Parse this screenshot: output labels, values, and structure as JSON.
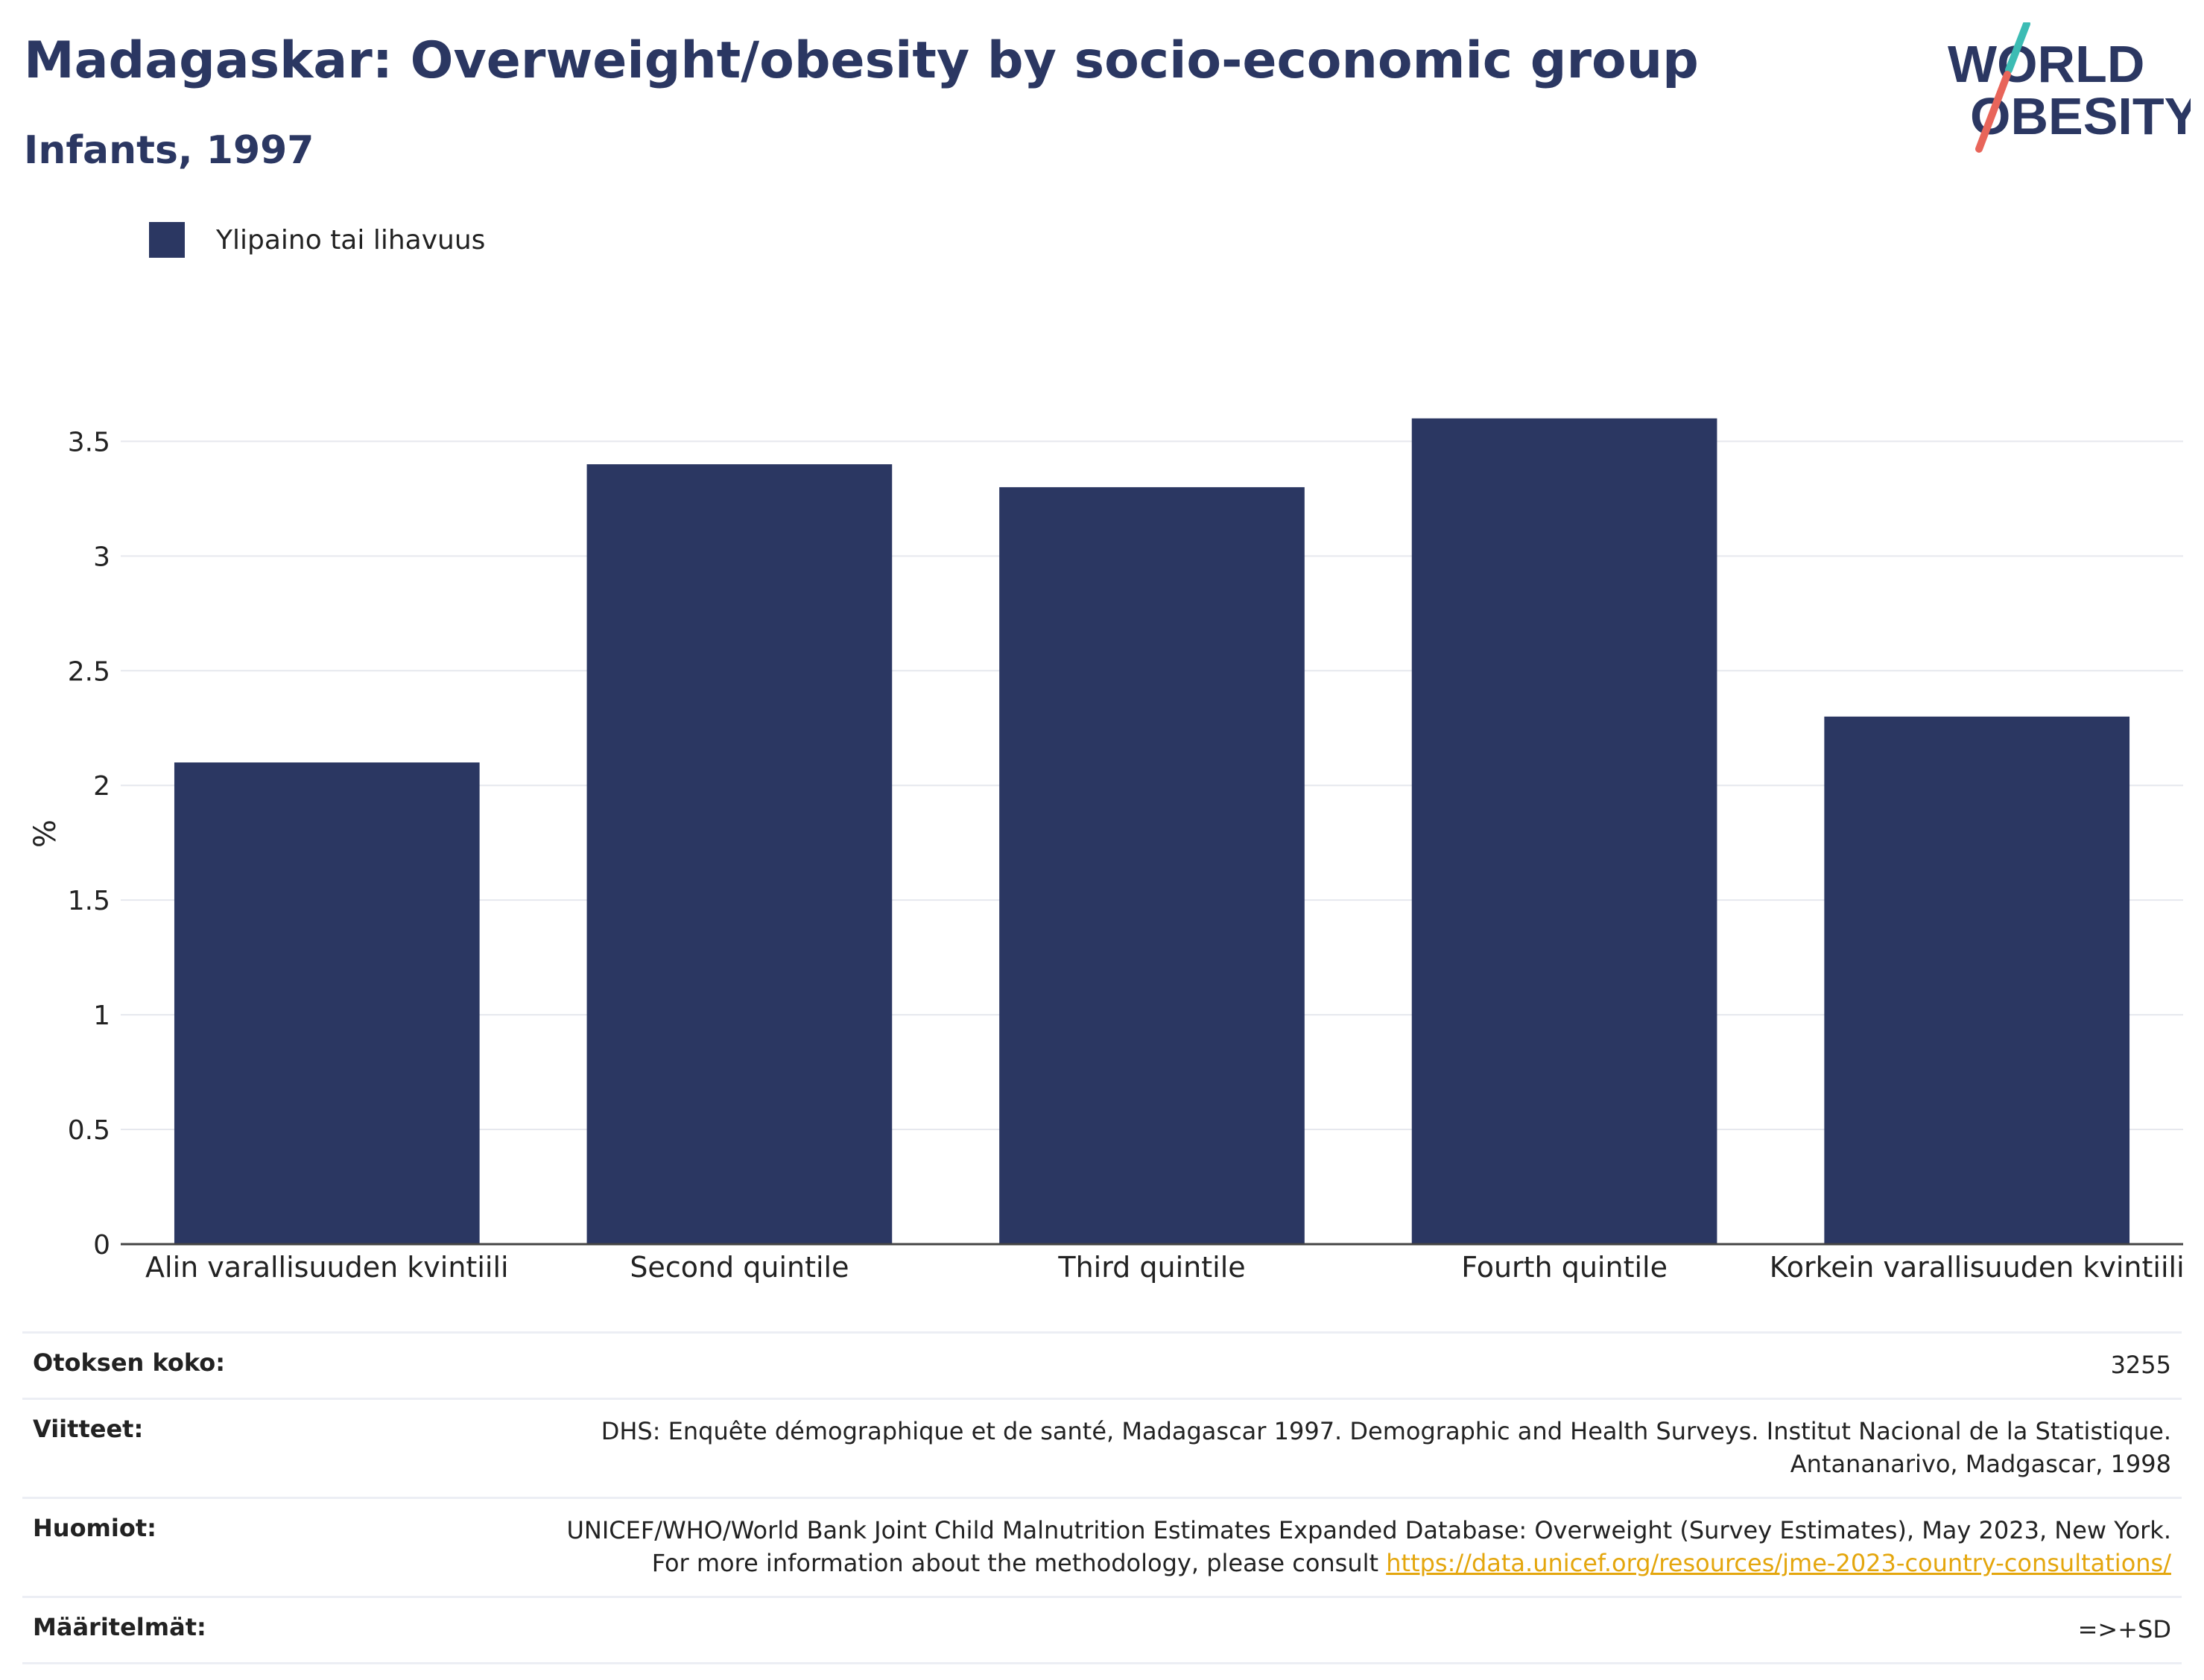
{
  "header": {
    "title": "Madagaskar: Overweight/obesity by socio-economic group",
    "subtitle": "Infants, 1997"
  },
  "logo": {
    "line1": "WORLD",
    "line2": "OBESITY",
    "colors": {
      "text": "#2b3762",
      "slash_top": "#3cbcb4",
      "slash_bottom": "#e8655a"
    }
  },
  "legend": {
    "label": "Ylipaino tai lihavuus"
  },
  "colors": {
    "bar": "#2b3762",
    "grid": "#e6e8ee",
    "axis": "#444444"
  },
  "chart_data": {
    "type": "bar",
    "categories": [
      "Alin varallisuuden kvintiili",
      "Second quintile",
      "Third quintile",
      "Fourth quintile",
      "Korkein varallisuuden kvintiili"
    ],
    "series": [
      {
        "name": "Ylipaino tai lihavuus",
        "values": [
          2.1,
          3.4,
          3.3,
          3.6,
          2.3
        ]
      }
    ],
    "ylabel": "%",
    "ylim": [
      0,
      3.8
    ],
    "yticks": [
      0,
      0.5,
      1,
      1.5,
      2,
      2.5,
      3,
      3.5
    ],
    "ytick_labels": [
      "0",
      "0.5",
      "1",
      "1.5",
      "2",
      "2.5",
      "3",
      "3.5"
    ],
    "grid": true,
    "legend_position": "top-left"
  },
  "info_table": {
    "sample_size": {
      "label": "Otoksen koko:",
      "value": "3255"
    },
    "references": {
      "label": "Viitteet:",
      "value": "DHS: Enquête démographique et de santé, Madagascar 1997. Demographic and Health Surveys. Institut Nacional de la Statistique. Antananarivo, Madgascar, 1998"
    },
    "notes": {
      "label": "Huomiot:",
      "value": "UNICEF/WHO/World Bank Joint Child Malnutrition Estimates Expanded Database: Overweight (Survey Estimates), May 2023, New York. For more information about the methodology, please consult ",
      "link": "https://data.unicef.org/resources/jme-2023-country-consultations/"
    },
    "definitions": {
      "label": "Määritelmät:",
      "value": "=>+SD"
    }
  }
}
